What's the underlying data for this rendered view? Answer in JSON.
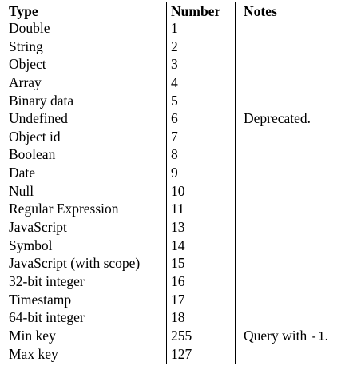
{
  "headers": {
    "type": "Type",
    "number": "Number",
    "notes": "Notes"
  },
  "rows": [
    {
      "type": "Double",
      "number": "1",
      "notes": ""
    },
    {
      "type": "String",
      "number": "2",
      "notes": ""
    },
    {
      "type": "Object",
      "number": "3",
      "notes": ""
    },
    {
      "type": "Array",
      "number": "4",
      "notes": ""
    },
    {
      "type": "Binary data",
      "number": "5",
      "notes": ""
    },
    {
      "type": "Undefined",
      "number": "6",
      "notes": "Deprecated."
    },
    {
      "type": "Object id",
      "number": "7",
      "notes": ""
    },
    {
      "type": "Boolean",
      "number": "8",
      "notes": ""
    },
    {
      "type": "Date",
      "number": "9",
      "notes": ""
    },
    {
      "type": "Null",
      "number": "10",
      "notes": ""
    },
    {
      "type": "Regular Expression",
      "number": "11",
      "notes": ""
    },
    {
      "type": "JavaScript",
      "number": "13",
      "notes": ""
    },
    {
      "type": "Symbol",
      "number": "14",
      "notes": ""
    },
    {
      "type": "JavaScript (with scope)",
      "number": "15",
      "notes": ""
    },
    {
      "type": "32-bit integer",
      "number": "16",
      "notes": ""
    },
    {
      "type": "Timestamp",
      "number": "17",
      "notes": ""
    },
    {
      "type": "64-bit integer",
      "number": "18",
      "notes": ""
    },
    {
      "type": "Min key",
      "number": "255",
      "notes": "Query with ",
      "notes_code": "-1",
      "notes_end": "."
    },
    {
      "type": "Max key",
      "number": "127",
      "notes": ""
    }
  ]
}
